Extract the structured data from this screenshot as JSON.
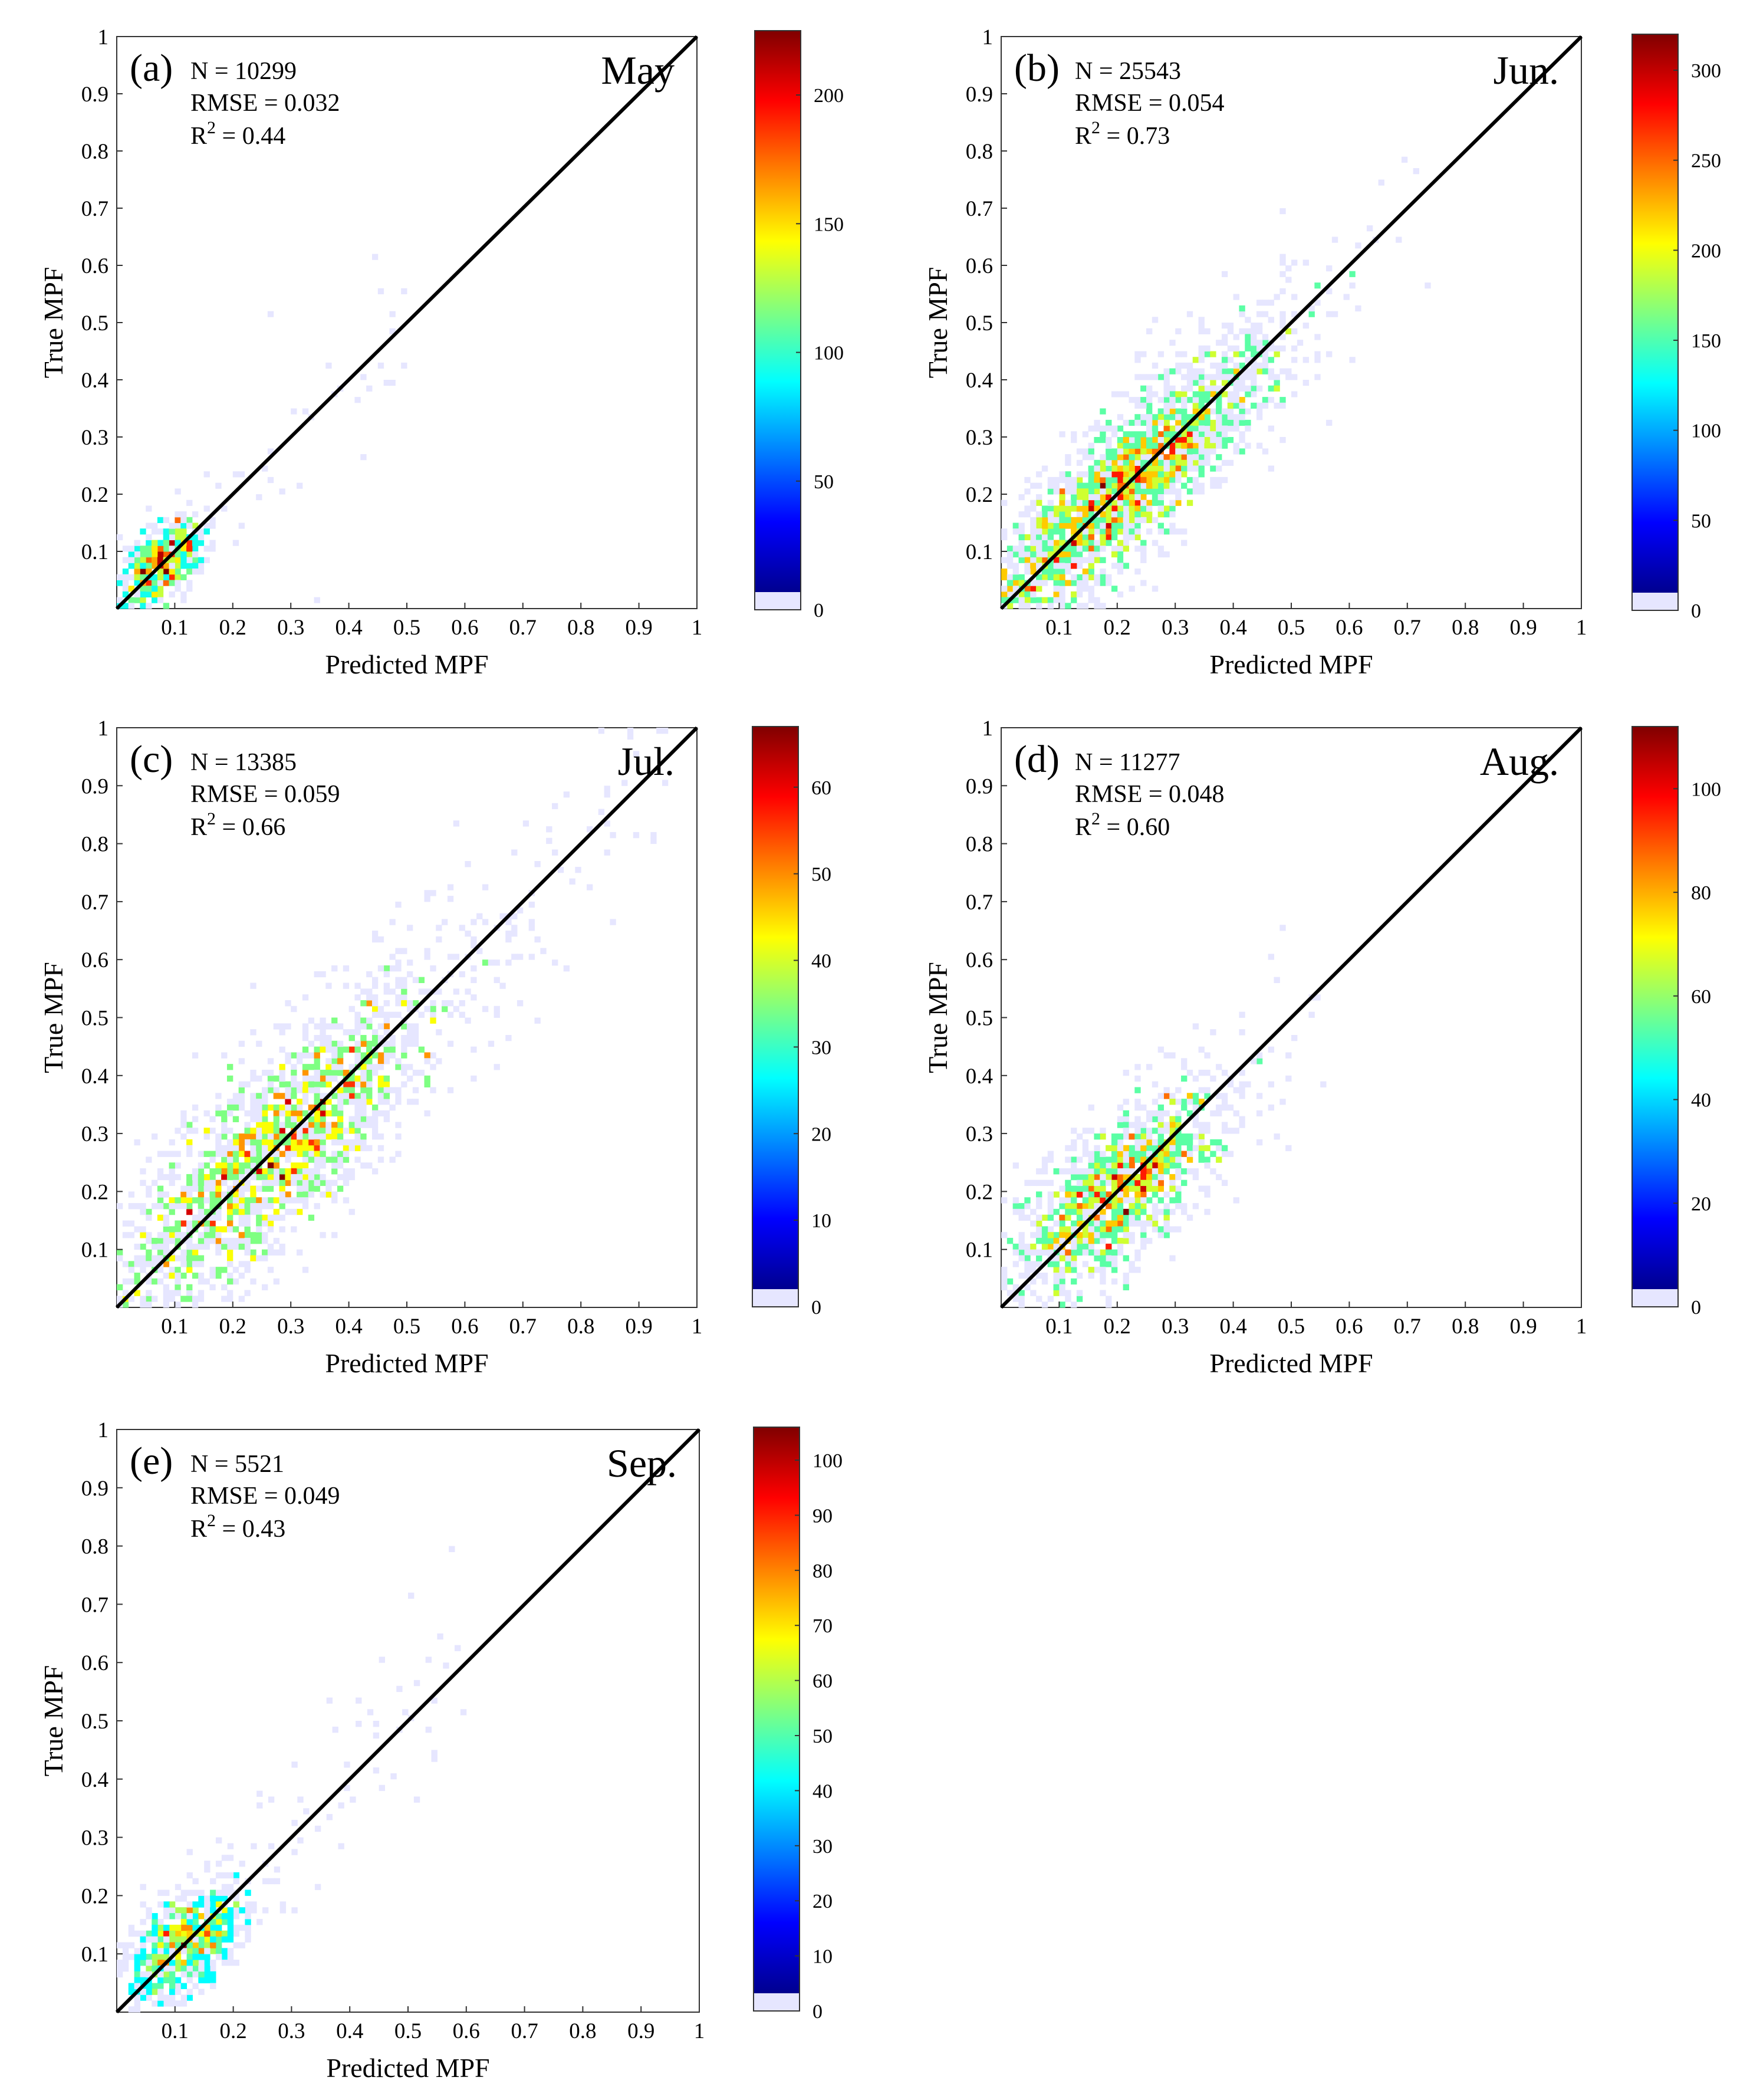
{
  "figure": {
    "layout": "3 rows by 2 columns, last row has a single panel",
    "colormap_name": "jet",
    "colormap": [
      "#00008f",
      "#0000ff",
      "#0080ff",
      "#00ffff",
      "#80ff80",
      "#ffff00",
      "#ff8000",
      "#ff0000",
      "#800000"
    ],
    "low_color": "#e6e6ff",
    "diagonal_color": "#000000"
  },
  "chart_data": [
    {
      "id": "a",
      "type": "heatmap",
      "panel_label": "(a)",
      "month": "May",
      "stats": [
        "N = 10299",
        "RMSE = 0.032",
        "R2 = 0.44"
      ],
      "xlabel": "Predicted MPF",
      "ylabel": "True MPF",
      "xlim": [
        0,
        1
      ],
      "ylim": [
        0,
        1
      ],
      "x_ticks": [
        "0.1",
        "0.2",
        "0.3",
        "0.4",
        "0.5",
        "0.6",
        "0.7",
        "0.8",
        "0.9",
        "1"
      ],
      "y_ticks": [
        "0.1",
        "0.2",
        "0.3",
        "0.4",
        "0.5",
        "0.6",
        "0.7",
        "0.8",
        "0.9",
        "1"
      ],
      "one_to_one_line": true,
      "density": {
        "center": [
          0.08,
          0.08
        ],
        "spread_major": 0.05,
        "spread_minor": 0.025,
        "points": 520,
        "outliers": 45,
        "outlier_range": [
          0.0,
          0.5
        ],
        "max_count": 225
      },
      "colorbar": {
        "min": 0,
        "max": 225,
        "ticks": [
          "0",
          "50",
          "100",
          "150",
          "200"
        ],
        "tick_values": [
          0,
          50,
          100,
          150,
          200
        ]
      }
    },
    {
      "id": "b",
      "type": "heatmap",
      "panel_label": "(b)",
      "month": "Jun.",
      "stats": [
        "N = 25543",
        "RMSE = 0.054",
        "R2 = 0.73"
      ],
      "xlabel": "Predicted MPF",
      "ylabel": "True MPF",
      "xlim": [
        0,
        1
      ],
      "ylim": [
        0,
        1
      ],
      "x_ticks": [
        "0.1",
        "0.2",
        "0.3",
        "0.4",
        "0.5",
        "0.6",
        "0.7",
        "0.8",
        "0.9",
        "1"
      ],
      "y_ticks": [
        "0.1",
        "0.2",
        "0.3",
        "0.4",
        "0.5",
        "0.6",
        "0.7",
        "0.8",
        "0.9",
        "1"
      ],
      "one_to_one_line": true,
      "density": {
        "center": [
          0.2,
          0.2
        ],
        "spread_major": 0.2,
        "spread_minor": 0.05,
        "points": 2200,
        "outliers": 80,
        "outlier_range": [
          0.02,
          0.65
        ],
        "max_count": 320
      },
      "colorbar": {
        "min": 0,
        "max": 320,
        "ticks": [
          "0",
          "50",
          "100",
          "150",
          "200",
          "250",
          "300"
        ],
        "tick_values": [
          0,
          50,
          100,
          150,
          200,
          250,
          300
        ]
      }
    },
    {
      "id": "c",
      "type": "heatmap",
      "panel_label": "(c)",
      "month": "Jul.",
      "stats": [
        "N = 13385",
        "RMSE = 0.059",
        "R2 = 0.66"
      ],
      "xlabel": "Predicted MPF",
      "ylabel": "True MPF",
      "xlim": [
        0,
        1
      ],
      "ylim": [
        0,
        1
      ],
      "x_ticks": [
        "0.1",
        "0.2",
        "0.3",
        "0.4",
        "0.5",
        "0.6",
        "0.7",
        "0.8",
        "0.9",
        "1"
      ],
      "y_ticks": [
        "0.1",
        "0.2",
        "0.3",
        "0.4",
        "0.5",
        "0.6",
        "0.7",
        "0.8",
        "0.9",
        "1"
      ],
      "one_to_one_line": true,
      "density": {
        "center": [
          0.27,
          0.27
        ],
        "spread_major": 0.2,
        "spread_minor": 0.06,
        "points": 1900,
        "outliers": 150,
        "outlier_range": [
          0.02,
          0.95
        ],
        "max_count": 67
      },
      "colorbar": {
        "min": 0,
        "max": 67,
        "ticks": [
          "0",
          "10",
          "20",
          "30",
          "40",
          "50",
          "60"
        ],
        "tick_values": [
          0,
          10,
          20,
          30,
          40,
          50,
          60
        ]
      }
    },
    {
      "id": "d",
      "type": "heatmap",
      "panel_label": "(d)",
      "month": "Aug.",
      "stats": [
        "N = 11277",
        "RMSE = 0.048",
        "R2 = 0.60"
      ],
      "xlabel": "Predicted MPF",
      "ylabel": "True MPF",
      "xlim": [
        0,
        1
      ],
      "ylim": [
        0,
        1
      ],
      "x_ticks": [
        "0.1",
        "0.2",
        "0.3",
        "0.4",
        "0.5",
        "0.6",
        "0.7",
        "0.8",
        "0.9",
        "1"
      ],
      "y_ticks": [
        "0.1",
        "0.2",
        "0.3",
        "0.4",
        "0.5",
        "0.6",
        "0.7",
        "0.8",
        "0.9",
        "1"
      ],
      "one_to_one_line": true,
      "density": {
        "center": [
          0.2,
          0.2
        ],
        "spread_major": 0.12,
        "spread_minor": 0.05,
        "points": 1300,
        "outliers": 50,
        "outlier_range": [
          0.02,
          0.55
        ],
        "max_count": 112
      },
      "colorbar": {
        "min": 0,
        "max": 112,
        "ticks": [
          "0",
          "20",
          "40",
          "60",
          "80",
          "100"
        ],
        "tick_values": [
          0,
          20,
          40,
          60,
          80,
          100
        ]
      }
    },
    {
      "id": "e",
      "type": "heatmap",
      "panel_label": "(e)",
      "month": "Sep.",
      "stats": [
        "N = 5521",
        "RMSE = 0.049",
        "R2 = 0.43"
      ],
      "xlabel": "Predicted MPF",
      "ylabel": "True MPF",
      "xlim": [
        0,
        1
      ],
      "ylim": [
        0,
        1
      ],
      "x_ticks": [
        "0.1",
        "0.2",
        "0.3",
        "0.4",
        "0.5",
        "0.6",
        "0.7",
        "0.8",
        "0.9",
        "1"
      ],
      "y_ticks": [
        "0.1",
        "0.2",
        "0.3",
        "0.4",
        "0.5",
        "0.6",
        "0.7",
        "0.8",
        "0.9",
        "1"
      ],
      "one_to_one_line": true,
      "density": {
        "center": [
          0.12,
          0.12
        ],
        "spread_major": 0.06,
        "spread_minor": 0.035,
        "points": 700,
        "outliers": 90,
        "outlier_range": [
          0.03,
          0.6
        ],
        "max_count": 106
      },
      "colorbar": {
        "min": 0,
        "max": 106,
        "ticks": [
          "0",
          "10",
          "20",
          "30",
          "40",
          "50",
          "60",
          "70",
          "80",
          "90",
          "100"
        ],
        "tick_values": [
          0,
          10,
          20,
          30,
          40,
          50,
          60,
          70,
          80,
          90,
          100
        ]
      }
    }
  ]
}
